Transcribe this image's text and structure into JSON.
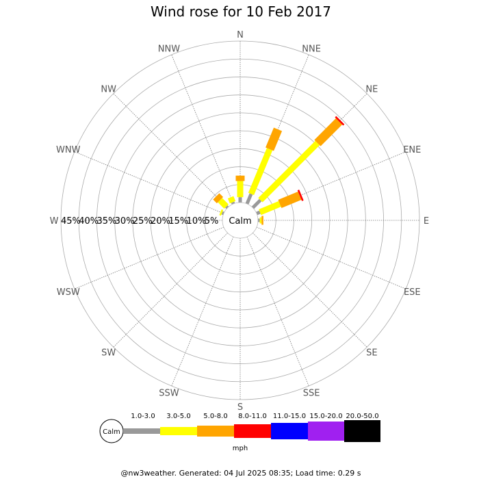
{
  "chart_data": {
    "type": "wind-rose",
    "title": "Wind rose for 10 Feb 2017",
    "directions": [
      "N",
      "NNE",
      "NE",
      "ENE",
      "E",
      "ESE",
      "SE",
      "SSE",
      "S",
      "SSW",
      "SW",
      "WSW",
      "W",
      "WNW",
      "NW",
      "NNW"
    ],
    "radial_ticks": [
      "5%",
      "10%",
      "15%",
      "20%",
      "25%",
      "30%",
      "35%",
      "40%",
      "45%"
    ],
    "radial_max": 45,
    "calm_label": "Calm",
    "speed_bins": [
      {
        "label": "1.0-3.0",
        "color": "#999999"
      },
      {
        "label": "3.0-5.0",
        "color": "#ffff00"
      },
      {
        "label": "5.0-8.0",
        "color": "#ffa500"
      },
      {
        "label": "8.0-11.0",
        "color": "#ff0000"
      },
      {
        "label": "11.0-15.0",
        "color": "#0000ff"
      },
      {
        "label": "15.0-20.0",
        "color": "#a020f0"
      },
      {
        "label": "20.0-50.0",
        "color": "#000000"
      }
    ],
    "unit": "mph",
    "series": [
      {
        "direction": "N",
        "values": [
          1.5,
          4.5,
          1.5,
          0,
          0,
          0,
          0
        ]
      },
      {
        "direction": "NNE",
        "values": [
          3.0,
          13.5,
          6.0,
          0,
          0,
          0,
          0
        ]
      },
      {
        "direction": "NE",
        "values": [
          3.0,
          22.5,
          8.5,
          0.5,
          0,
          0,
          0
        ]
      },
      {
        "direction": "ENE",
        "values": [
          1.0,
          6.0,
          6.0,
          0.5,
          0,
          0,
          0
        ]
      },
      {
        "direction": "E",
        "values": [
          0.5,
          0.5,
          0.5,
          0,
          0,
          0,
          0
        ]
      },
      {
        "direction": "NW",
        "values": [
          0.5,
          2.5,
          1.5,
          0,
          0,
          0,
          0
        ]
      },
      {
        "direction": "NNW",
        "values": [
          0.5,
          1.5,
          0,
          0,
          0,
          0,
          0
        ]
      },
      {
        "direction": "WNW",
        "values": [
          0.5,
          0.5,
          0,
          0,
          0,
          0,
          0
        ]
      }
    ]
  },
  "footer": "@nw3weather. Generated: 04 Jul 2025 08:35; Load time: 0.29 s"
}
